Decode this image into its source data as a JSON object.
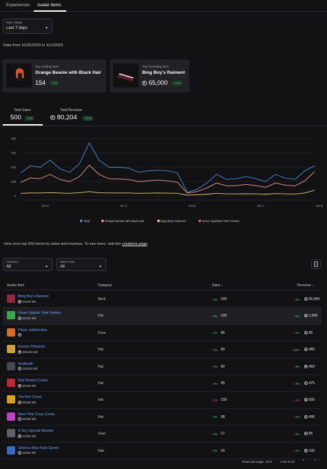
{
  "tabs": [
    {
      "label": "Experiences"
    },
    {
      "label": "Avatar Items"
    }
  ],
  "date_range": {
    "label": "Date Range",
    "value": "Last 7 days"
  },
  "data_range_text": "Data from 10/25/2023 to 11/1/2023",
  "top_selling": {
    "label": "Top Selling Item",
    "name": "Orange Beanie with Black Hair",
    "value": "154",
    "change": "↑ 5%"
  },
  "top_grossing": {
    "label": "Top Grossing Item",
    "name": "Bing Boy's Raiment",
    "value": "65,000",
    "change": "↑ 20%"
  },
  "stats": {
    "sales": {
      "label": "Total Sales",
      "value": "500",
      "change": "↑ 5%"
    },
    "revenue": {
      "label": "Total Revenue",
      "value": "80,204",
      "change": "↑ 20%"
    }
  },
  "chart_data": {
    "type": "line",
    "ylim": [
      0,
      400
    ],
    "yticks": [
      "0",
      "100",
      "200",
      "300",
      "400"
    ],
    "xlim": [
      0,
      30
    ],
    "xticks": [
      {
        "label": "Oct 3",
        "x": 2
      },
      {
        "label": "Oct 5",
        "x": 10
      },
      {
        "label": "Oct 5",
        "x": 17
      },
      {
        "label": "Oct 7",
        "x": 24
      },
      {
        "label": "Oct 8",
        "x": 30
      }
    ],
    "series": [
      {
        "name": "Total",
        "color": "#4a90e2",
        "x": [
          0,
          1,
          2,
          3,
          4,
          5,
          6,
          7,
          8,
          9,
          10,
          11,
          12,
          13,
          14,
          15,
          16,
          17,
          18,
          19,
          20,
          21,
          22,
          23,
          24,
          25,
          26,
          27,
          28,
          29,
          30
        ],
        "y": [
          160,
          210,
          200,
          250,
          190,
          165,
          225,
          370,
          250,
          200,
          200,
          195,
          165,
          175,
          180,
          175,
          160,
          25,
          45,
          90,
          150,
          115,
          120,
          135,
          120,
          100,
          150,
          125,
          115,
          175,
          210
        ]
      },
      {
        "name": "Orange Beanie with Black Hair",
        "color": "#f29b9b",
        "x": [
          0,
          1,
          2,
          3,
          4,
          5,
          6,
          7,
          8,
          9,
          10,
          11,
          12,
          13,
          14,
          15,
          16,
          17,
          18,
          19,
          20,
          21,
          22,
          23,
          24,
          25,
          26,
          27,
          28,
          29,
          30
        ],
        "y": [
          95,
          125,
          120,
          150,
          115,
          100,
          135,
          215,
          150,
          120,
          118,
          115,
          100,
          105,
          110,
          105,
          95,
          20,
          30,
          55,
          90,
          70,
          72,
          80,
          72,
          60,
          90,
          75,
          70,
          105,
          170
        ]
      },
      {
        "name": "Bing Boy's Raiment",
        "color": "#e8d27a",
        "x": [
          0,
          1,
          2,
          3,
          4,
          5,
          6,
          7,
          8,
          9,
          10,
          11,
          12,
          13,
          14,
          15,
          16,
          17,
          18,
          19,
          20,
          21,
          22,
          23,
          24,
          25,
          26,
          27,
          28,
          29,
          30
        ],
        "y": [
          18,
          20,
          20,
          22,
          20,
          18,
          22,
          30,
          22,
          20,
          20,
          20,
          18,
          19,
          20,
          19,
          18,
          5,
          8,
          12,
          18,
          14,
          14,
          15,
          14,
          12,
          16,
          14,
          13,
          20,
          40
        ]
      },
      {
        "name": "Green Sparkles Time Fedora",
        "color": "#e05a8a",
        "x": [],
        "y": []
      }
    ]
  },
  "info_text": "View your top 200 items by sales and revenue. To see more, visit the ",
  "info_link": "creations page",
  "filters": {
    "category": {
      "label": "Category",
      "value": "All"
    },
    "sales_type": {
      "label": "Sales Type",
      "value": "All"
    }
  },
  "table": {
    "headers": {
      "item": "Avatar Item",
      "category": "Category",
      "sales": "Sales ↓",
      "revenue": "Revenue ↓"
    },
    "rows": [
      {
        "name": "Bling Boy's Raiment",
        "left": "0/100 left",
        "category": "Neck",
        "sales_change": "↑ 2%",
        "sales_dir": "up",
        "sales": "100",
        "rev_change": "↑ 3%",
        "rev_dir": "up",
        "revenue": "65,000",
        "color": "#8a2a3a"
      },
      {
        "name": "Green Sparkle Time Fedora",
        "left": "0/100 left",
        "category": "Hat",
        "sales_change": "↑ 5%",
        "sales_dir": "up",
        "sales": "100",
        "rev_change": "↑ 5%",
        "rev_dir": "up",
        "revenue": "1,500",
        "color": "#3aa84a"
      },
      {
        "name": "Piface Jellyfreckles",
        "left": "",
        "category": "Face",
        "sales_change": "↑ 1%",
        "sales_dir": "up",
        "sales": "85",
        "rev_change": "↑ 1%",
        "rev_dir": "up",
        "revenue": "85",
        "color": "#d86a2a"
      },
      {
        "name": "Domino Pittacium",
        "left": "20/100 left",
        "category": "Hat",
        "sales_change": "↑ 1%",
        "sales_dir": "up",
        "sales": "80",
        "rev_change": "↑ 13%",
        "rev_dir": "up",
        "revenue": "480",
        "color": "#c8a040"
      },
      {
        "name": "Voidwrath",
        "left": "10/100 left",
        "category": "Hat",
        "sales_change": "↑ 3%",
        "sales_dir": "up",
        "sales": "90",
        "rev_change": "↑ 3%",
        "rev_dir": "up",
        "revenue": "450",
        "color": "#444a58"
      },
      {
        "name": "Red Domino Crown",
        "left": "5/100 left",
        "category": "Hat",
        "sales_change": "↑ 3%",
        "sales_dir": "up",
        "sales": "95",
        "rev_change": "↑ 3%",
        "rev_dir": "up",
        "revenue": "475",
        "color": "#c0283a"
      },
      {
        "name": "The Fire Crown",
        "left": "0/100 left",
        "category": "Hat",
        "sales_change": "↓ 2%",
        "sales_dir": "down",
        "sales": "100",
        "rev_change": "↓ 2%",
        "rev_dir": "down",
        "revenue": "500",
        "color": "#d8a020"
      },
      {
        "name": "Neon Pink Crazy Crown",
        "left": "2/100 left",
        "category": "Hat",
        "sales_change": "↑ 2%",
        "sales_dir": "up",
        "sales": "98",
        "rev_change": "↑ 2%",
        "rev_dir": "up",
        "revenue": "490",
        "color": "#c040c8"
      },
      {
        "name": "A Very Special Monster",
        "left": "13/30 left",
        "category": "Gear",
        "sales_change": "↑ 2%",
        "sales_dir": "up",
        "sales": "17",
        "rev_change": "↑ 2%",
        "rev_dir": "up",
        "revenue": "85",
        "color": "#606068"
      },
      {
        "name": "Glorious Blue Party Queen",
        "left": "10/30 left",
        "category": "Hair",
        "sales_change": "↑ 2%",
        "sales_dir": "up",
        "sales": "20",
        "rev_change": "↑ 2%",
        "rev_dir": "up",
        "revenue": "100",
        "color": "#3a6ac8"
      }
    ]
  },
  "pagination": {
    "rows_label": "Rows per page:",
    "rows_value": "10",
    "range": "1-10 of 10",
    "prev": "‹",
    "next": "›"
  }
}
